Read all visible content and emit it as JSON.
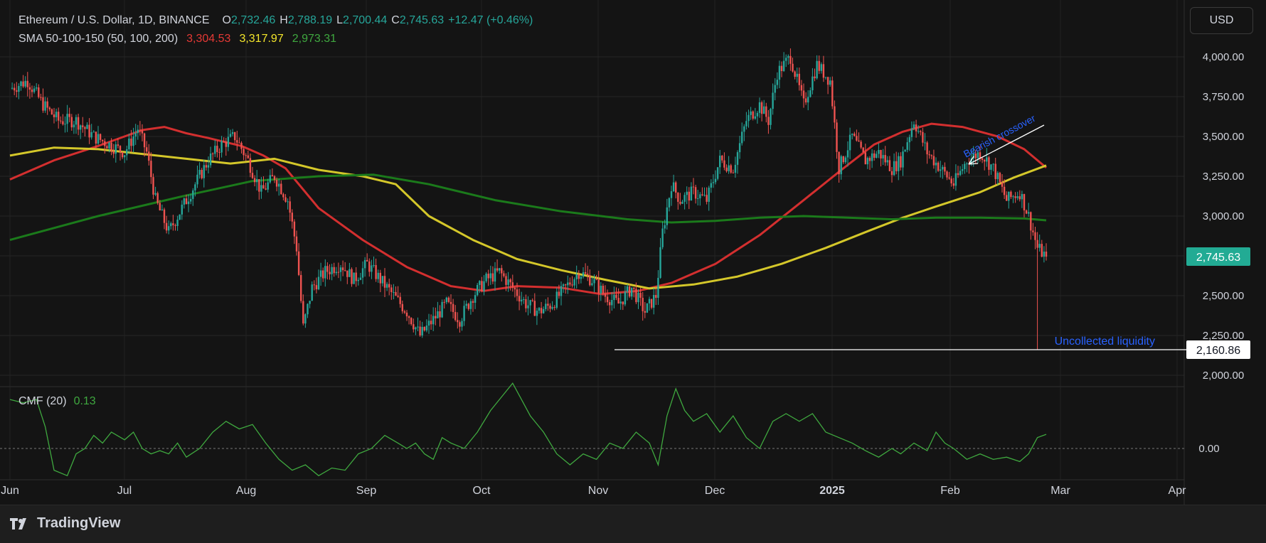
{
  "header": {
    "symbol": "Ethereum / U.S. Dollar, 1D, BINANCE",
    "o_label": "O",
    "o": "2,732.46",
    "h_label": "H",
    "h": "2,788.19",
    "l_label": "L",
    "l": "2,700.44",
    "c_label": "C",
    "c": "2,745.63",
    "change": "+12.47 (+0.46%)",
    "sma_label": "SMA 50-100-150 (50, 100, 200)",
    "sma1": "3,304.53",
    "sma2": "3,317.97",
    "sma3": "2,973.31",
    "cmf_label": "CMF (20)",
    "cmf": "0.13"
  },
  "toolbar": {
    "currency": "USD"
  },
  "footer": {
    "brand": "TradingView"
  },
  "colors": {
    "up": "#26a69a",
    "down": "#ef5350",
    "sma50": "#d32f2f",
    "sma100": "#d4c72a",
    "sma200": "#1b7a1b",
    "cmf": "#3fa83f",
    "annotation": "#2962ff",
    "label_bg": "#22ab94"
  },
  "chart_data": [
    {
      "type": "candlestick",
      "title": "Ethereum / U.S. Dollar, 1D, BINANCE",
      "x_ticks": [
        "Jun",
        "Jul",
        "Aug",
        "Sep",
        "Oct",
        "Nov",
        "Dec",
        "2025",
        "Feb",
        "Mar",
        "Apr"
      ],
      "y_ticks": [
        "2,000.00",
        "2,250.00",
        "2,500.00",
        "2,750.00",
        "3,000.00",
        "3,250.00",
        "3,500.00",
        "3,750.00",
        "4,000.00"
      ],
      "ylim": [
        2000,
        4000
      ],
      "last_price": "2,745.63",
      "price_level": "2,160.86",
      "annotations": [
        "Bearish crossover",
        "Uncollected liquidity"
      ],
      "close_path": [
        [
          0,
          3800
        ],
        [
          8,
          3850
        ],
        [
          15,
          3700
        ],
        [
          22,
          3600
        ],
        [
          30,
          3600
        ],
        [
          38,
          3500
        ],
        [
          45,
          3450
        ],
        [
          52,
          3400
        ],
        [
          58,
          3550
        ],
        [
          62,
          3400
        ],
        [
          66,
          3100
        ],
        [
          72,
          2900
        ],
        [
          78,
          3050
        ],
        [
          84,
          3200
        ],
        [
          90,
          3350
        ],
        [
          96,
          3450
        ],
        [
          102,
          3500
        ],
        [
          108,
          3350
        ],
        [
          114,
          3150
        ],
        [
          120,
          3250
        ],
        [
          126,
          3100
        ],
        [
          130,
          2800
        ],
        [
          133,
          2300
        ],
        [
          137,
          2550
        ],
        [
          143,
          2650
        ],
        [
          150,
          2700
        ],
        [
          156,
          2600
        ],
        [
          162,
          2700
        ],
        [
          168,
          2600
        ],
        [
          174,
          2500
        ],
        [
          180,
          2400
        ],
        [
          186,
          2250
        ],
        [
          192,
          2350
        ],
        [
          198,
          2450
        ],
        [
          204,
          2350
        ],
        [
          210,
          2500
        ],
        [
          216,
          2600
        ],
        [
          222,
          2650
        ],
        [
          228,
          2550
        ],
        [
          234,
          2450
        ],
        [
          240,
          2400
        ],
        [
          246,
          2450
        ],
        [
          252,
          2550
        ],
        [
          258,
          2650
        ],
        [
          264,
          2600
        ],
        [
          270,
          2500
        ],
        [
          276,
          2450
        ],
        [
          282,
          2550
        ],
        [
          288,
          2400
        ],
        [
          293,
          2500
        ],
        [
          296,
          2900
        ],
        [
          300,
          3200
        ],
        [
          304,
          3100
        ],
        [
          310,
          3150
        ],
        [
          316,
          3100
        ],
        [
          322,
          3350
        ],
        [
          328,
          3300
        ],
        [
          334,
          3600
        ],
        [
          340,
          3700
        ],
        [
          344,
          3600
        ],
        [
          348,
          3900
        ],
        [
          354,
          4000
        ],
        [
          360,
          3700
        ],
        [
          366,
          3950
        ],
        [
          372,
          3850
        ],
        [
          376,
          3300
        ],
        [
          382,
          3500
        ],
        [
          388,
          3350
        ],
        [
          394,
          3400
        ],
        [
          400,
          3300
        ],
        [
          404,
          3350
        ],
        [
          410,
          3600
        ],
        [
          416,
          3400
        ],
        [
          422,
          3300
        ],
        [
          428,
          3200
        ],
        [
          434,
          3350
        ],
        [
          440,
          3400
        ],
        [
          446,
          3300
        ],
        [
          452,
          3100
        ],
        [
          458,
          3150
        ],
        [
          462,
          3000
        ],
        [
          466,
          2800
        ],
        [
          470,
          2745
        ]
      ],
      "series": [
        {
          "name": "SMA 50",
          "values": [
            [
              0,
              3230
            ],
            [
              20,
              3350
            ],
            [
              40,
              3440
            ],
            [
              60,
              3540
            ],
            [
              70,
              3560
            ],
            [
              80,
              3520
            ],
            [
              90,
              3490
            ],
            [
              105,
              3440
            ],
            [
              115,
              3380
            ],
            [
              125,
              3300
            ],
            [
              140,
              3050
            ],
            [
              160,
              2850
            ],
            [
              180,
              2680
            ],
            [
              200,
              2560
            ],
            [
              215,
              2530
            ],
            [
              230,
              2560
            ],
            [
              250,
              2550
            ],
            [
              268,
              2510
            ],
            [
              285,
              2530
            ],
            [
              300,
              2580
            ],
            [
              320,
              2700
            ],
            [
              340,
              2880
            ],
            [
              360,
              3100
            ],
            [
              378,
              3300
            ],
            [
              392,
              3450
            ],
            [
              405,
              3530
            ],
            [
              418,
              3580
            ],
            [
              432,
              3560
            ],
            [
              448,
              3500
            ],
            [
              460,
              3420
            ],
            [
              470,
              3304
            ]
          ]
        },
        {
          "name": "SMA 100",
          "values": [
            [
              0,
              3380
            ],
            [
              20,
              3430
            ],
            [
              40,
              3420
            ],
            [
              60,
              3390
            ],
            [
              80,
              3360
            ],
            [
              100,
              3330
            ],
            [
              120,
              3360
            ],
            [
              140,
              3290
            ],
            [
              160,
              3250
            ],
            [
              175,
              3200
            ],
            [
              190,
              3000
            ],
            [
              210,
              2850
            ],
            [
              230,
              2730
            ],
            [
              250,
              2660
            ],
            [
              270,
              2600
            ],
            [
              290,
              2545
            ],
            [
              310,
              2570
            ],
            [
              330,
              2620
            ],
            [
              350,
              2700
            ],
            [
              370,
              2800
            ],
            [
              390,
              2910
            ],
            [
              405,
              2990
            ],
            [
              420,
              3060
            ],
            [
              440,
              3150
            ],
            [
              455,
              3240
            ],
            [
              470,
              3318
            ]
          ]
        },
        {
          "name": "SMA 200",
          "values": [
            [
              0,
              2850
            ],
            [
              40,
              3000
            ],
            [
              80,
              3130
            ],
            [
              110,
              3220
            ],
            [
              140,
              3250
            ],
            [
              165,
              3260
            ],
            [
              190,
              3200
            ],
            [
              220,
              3100
            ],
            [
              250,
              3030
            ],
            [
              280,
              2980
            ],
            [
              300,
              2960
            ],
            [
              320,
              2970
            ],
            [
              340,
              2990
            ],
            [
              360,
              3000
            ],
            [
              380,
              2990
            ],
            [
              400,
              2980
            ],
            [
              420,
              2990
            ],
            [
              440,
              2990
            ],
            [
              460,
              2985
            ],
            [
              470,
              2973
            ]
          ]
        }
      ]
    },
    {
      "type": "line",
      "title": "CMF (20)",
      "y_ticks": [
        "0.00"
      ],
      "ylim": [
        -0.4,
        0.6
      ],
      "last_value": "0.13",
      "series": [
        {
          "name": "CMF (20)",
          "values": [
            [
              0,
              0.45
            ],
            [
              6,
              0.42
            ],
            [
              12,
              0.45
            ],
            [
              16,
              0.2
            ],
            [
              20,
              -0.2
            ],
            [
              26,
              -0.25
            ],
            [
              30,
              -0.05
            ],
            [
              34,
              0.0
            ],
            [
              38,
              0.12
            ],
            [
              42,
              0.05
            ],
            [
              46,
              0.15
            ],
            [
              52,
              0.08
            ],
            [
              56,
              0.15
            ],
            [
              60,
              0.0
            ],
            [
              64,
              -0.05
            ],
            [
              68,
              -0.02
            ],
            [
              72,
              -0.05
            ],
            [
              76,
              0.05
            ],
            [
              80,
              -0.08
            ],
            [
              86,
              0.0
            ],
            [
              92,
              0.15
            ],
            [
              98,
              0.25
            ],
            [
              104,
              0.18
            ],
            [
              110,
              0.22
            ],
            [
              116,
              0.05
            ],
            [
              122,
              -0.1
            ],
            [
              128,
              -0.2
            ],
            [
              134,
              -0.15
            ],
            [
              140,
              -0.25
            ],
            [
              146,
              -0.18
            ],
            [
              152,
              -0.2
            ],
            [
              158,
              -0.05
            ],
            [
              164,
              0.0
            ],
            [
              170,
              0.12
            ],
            [
              176,
              0.05
            ],
            [
              180,
              0.0
            ],
            [
              184,
              0.05
            ],
            [
              188,
              -0.05
            ],
            [
              192,
              -0.1
            ],
            [
              196,
              0.1
            ],
            [
              200,
              0.05
            ],
            [
              206,
              0.0
            ],
            [
              212,
              0.15
            ],
            [
              218,
              0.35
            ],
            [
              224,
              0.5
            ],
            [
              228,
              0.6
            ],
            [
              232,
              0.45
            ],
            [
              236,
              0.3
            ],
            [
              242,
              0.15
            ],
            [
              248,
              -0.05
            ],
            [
              254,
              -0.15
            ],
            [
              260,
              -0.05
            ],
            [
              266,
              -0.1
            ],
            [
              272,
              0.05
            ],
            [
              278,
              0.0
            ],
            [
              284,
              0.15
            ],
            [
              290,
              0.05
            ],
            [
              294,
              -0.15
            ],
            [
              298,
              0.3
            ],
            [
              302,
              0.55
            ],
            [
              306,
              0.35
            ],
            [
              310,
              0.25
            ],
            [
              316,
              0.32
            ],
            [
              322,
              0.15
            ],
            [
              328,
              0.3
            ],
            [
              334,
              0.1
            ],
            [
              340,
              0.0
            ],
            [
              346,
              0.25
            ],
            [
              352,
              0.32
            ],
            [
              358,
              0.25
            ],
            [
              364,
              0.32
            ],
            [
              370,
              0.15
            ],
            [
              376,
              0.1
            ],
            [
              382,
              0.05
            ],
            [
              388,
              -0.02
            ],
            [
              394,
              -0.08
            ],
            [
              400,
              0.0
            ],
            [
              404,
              -0.05
            ],
            [
              410,
              0.05
            ],
            [
              416,
              -0.02
            ],
            [
              420,
              0.15
            ],
            [
              424,
              0.05
            ],
            [
              428,
              0.0
            ],
            [
              434,
              -0.1
            ],
            [
              440,
              -0.05
            ],
            [
              446,
              -0.1
            ],
            [
              452,
              -0.08
            ],
            [
              458,
              -0.12
            ],
            [
              462,
              -0.05
            ],
            [
              466,
              0.1
            ],
            [
              470,
              0.13
            ]
          ]
        }
      ]
    }
  ]
}
